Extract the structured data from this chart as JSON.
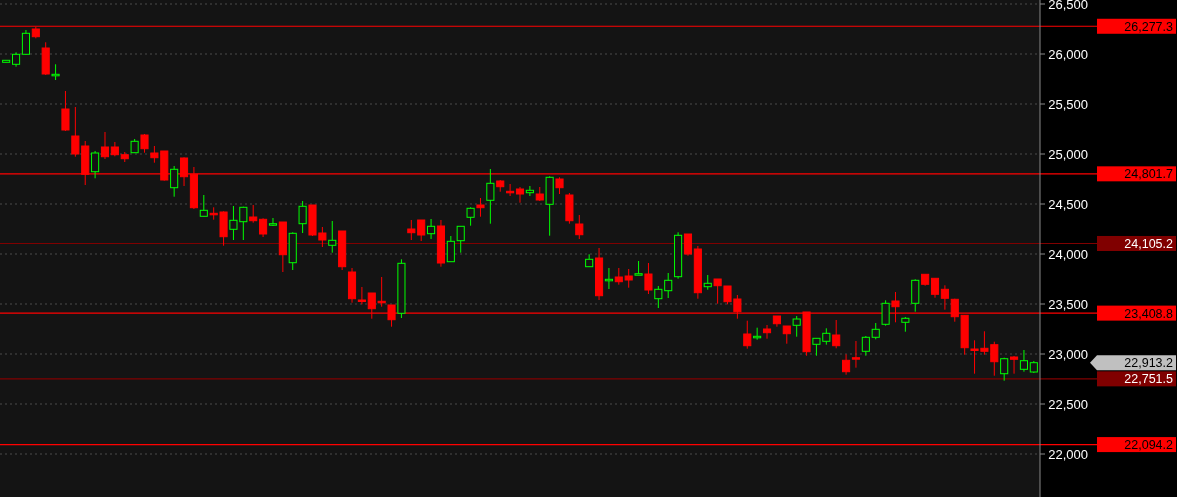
{
  "chart_data": {
    "type": "candlestick",
    "categories": [
      null,
      null,
      null,
      null,
      null,
      null,
      null,
      null,
      null,
      null,
      null,
      null,
      null,
      null,
      null,
      null,
      null,
      null,
      null,
      null,
      null,
      null,
      null,
      null,
      null,
      null,
      null,
      null,
      null,
      null,
      null,
      null,
      null,
      null,
      null,
      null,
      null,
      null,
      null,
      null,
      null,
      null,
      null,
      null,
      null,
      null,
      null,
      null,
      null,
      null,
      null,
      null,
      null,
      null,
      null,
      null,
      null,
      null,
      null,
      null,
      null,
      null,
      null,
      null,
      null,
      null,
      null,
      null,
      null,
      null,
      null,
      null,
      null,
      null,
      null,
      null,
      null,
      null,
      null,
      null,
      null,
      null,
      null,
      null,
      null,
      null,
      null,
      null,
      null,
      null,
      null,
      null,
      null,
      null,
      null,
      null,
      null,
      null,
      null,
      null,
      null,
      null,
      null,
      null,
      null
    ],
    "ohlc": [
      [
        25917,
        25937,
        25917,
        25937
      ],
      [
        25897,
        26017,
        25873,
        25997
      ],
      [
        25997,
        26240,
        25997,
        26207
      ],
      [
        26250,
        26273,
        26157,
        26173
      ],
      [
        26060,
        26117,
        25790,
        25800
      ],
      [
        25793,
        25897,
        25740,
        25797
      ],
      [
        25450,
        25630,
        25230,
        25240
      ],
      [
        25180,
        25470,
        24973,
        25000
      ],
      [
        25080,
        25130,
        24690,
        24797
      ],
      [
        24823,
        25030,
        24757,
        25010
      ],
      [
        25070,
        25220,
        24950,
        24973
      ],
      [
        25070,
        25120,
        24977,
        24993
      ],
      [
        24993,
        25020,
        24920,
        24953
      ],
      [
        25013,
        25150,
        25013,
        25127
      ],
      [
        25190,
        25200,
        25013,
        25053
      ],
      [
        25010,
        25080,
        24913,
        24963
      ],
      [
        25030,
        25030,
        24733,
        24740
      ],
      [
        24663,
        24880,
        24573,
        24847
      ],
      [
        24960,
        24967,
        24680,
        24773
      ],
      [
        24797,
        24870,
        24450,
        24463
      ],
      [
        24377,
        24590,
        24377,
        24437
      ],
      [
        24407,
        24467,
        24343,
        24397
      ],
      [
        24420,
        24427,
        24083,
        24173
      ],
      [
        24247,
        24480,
        24140,
        24337
      ],
      [
        24323,
        24473,
        24140,
        24467
      ],
      [
        24370,
        24490,
        24313,
        24333
      ],
      [
        24347,
        24357,
        24170,
        24200
      ],
      [
        24297,
        24360,
        24280,
        24303
      ],
      [
        24320,
        24320,
        23820,
        23993
      ],
      [
        23913,
        24217,
        23840,
        24207
      ],
      [
        24303,
        24530,
        24210,
        24477
      ],
      [
        24490,
        24490,
        24180,
        24190
      ],
      [
        24210,
        24270,
        24070,
        24140
      ],
      [
        24087,
        24330,
        24013,
        24137
      ],
      [
        24230,
        24230,
        23840,
        23873
      ],
      [
        23820,
        23860,
        23513,
        23553
      ],
      [
        23540,
        23670,
        23497,
        23530
      ],
      [
        23610,
        23610,
        23353,
        23453
      ],
      [
        23527,
        23770,
        23473,
        23517
      ],
      [
        23490,
        23490,
        23273,
        23343
      ],
      [
        23407,
        23947,
        23360,
        23907
      ],
      [
        24250,
        24340,
        24140,
        24213
      ],
      [
        24340,
        24340,
        24130,
        24190
      ],
      [
        24203,
        24350,
        24150,
        24277
      ],
      [
        24280,
        24340,
        23873,
        23910
      ],
      [
        23923,
        24180,
        23923,
        24127
      ],
      [
        24133,
        24277,
        24013,
        24277
      ],
      [
        24367,
        24467,
        24283,
        24457
      ],
      [
        24490,
        24560,
        24373,
        24463
      ],
      [
        24537,
        24850,
        24303,
        24707
      ],
      [
        24730,
        24740,
        24623,
        24673
      ],
      [
        24627,
        24700,
        24580,
        24623
      ],
      [
        24650,
        24670,
        24513,
        24600
      ],
      [
        24613,
        24680,
        24580,
        24637
      ],
      [
        24600,
        24670,
        24530,
        24540
      ],
      [
        24497,
        24777,
        24183,
        24767
      ],
      [
        24750,
        24767,
        24600,
        24663
      ],
      [
        24590,
        24610,
        24303,
        24333
      ],
      [
        24300,
        24390,
        24150,
        24193
      ],
      [
        23873,
        23997,
        23873,
        23947
      ],
      [
        23960,
        24060,
        23540,
        23583
      ],
      [
        23740,
        23860,
        23650,
        23747
      ],
      [
        23770,
        23860,
        23693,
        23723
      ],
      [
        23780,
        23850,
        23663,
        23740
      ],
      [
        23800,
        23930,
        23793,
        23803
      ],
      [
        23800,
        23910,
        23600,
        23640
      ],
      [
        23553,
        23680,
        23460,
        23647
      ],
      [
        23633,
        23810,
        23560,
        23737
      ],
      [
        23773,
        24217,
        23753,
        24187
      ],
      [
        24200,
        24200,
        23983,
        24000
      ],
      [
        24050,
        24080,
        23553,
        23613
      ],
      [
        23673,
        23790,
        23643,
        23707
      ],
      [
        23750,
        23750,
        23503,
        23683
      ],
      [
        23680,
        23680,
        23497,
        23523
      ],
      [
        23550,
        23590,
        23353,
        23423
      ],
      [
        23200,
        23333,
        23053,
        23083
      ],
      [
        23173,
        23263,
        23143,
        23177
      ],
      [
        23250,
        23290,
        23153,
        23213
      ],
      [
        23380,
        23380,
        23273,
        23303
      ],
      [
        23280,
        23280,
        23103,
        23203
      ],
      [
        23287,
        23380,
        23173,
        23350
      ],
      [
        23420,
        23420,
        22983,
        23023
      ],
      [
        23097,
        23157,
        22983,
        23157
      ],
      [
        23127,
        23257,
        23093,
        23207
      ],
      [
        23190,
        23340,
        23057,
        23083
      ],
      [
        22937,
        22997,
        22793,
        22823
      ],
      [
        22963,
        23130,
        22863,
        22960
      ],
      [
        23027,
        23180,
        22983,
        23167
      ],
      [
        23167,
        23310,
        23147,
        23247
      ],
      [
        23297,
        23537,
        23283,
        23507
      ],
      [
        23530,
        23620,
        23317,
        23473
      ],
      [
        23317,
        23370,
        23223,
        23357
      ],
      [
        23507,
        23747,
        23423,
        23737
      ],
      [
        23797,
        23797,
        23683,
        23697
      ],
      [
        23757,
        23757,
        23563,
        23597
      ],
      [
        23647,
        23687,
        23443,
        23557
      ],
      [
        23547,
        23553,
        23323,
        23373
      ],
      [
        23387,
        23387,
        22993,
        23063
      ],
      [
        23050,
        23137,
        22803,
        23047
      ],
      [
        23057,
        23227,
        22993,
        23027
      ],
      [
        23093,
        23123,
        22783,
        22923
      ],
      [
        22803,
        22963,
        22733,
        22953
      ],
      [
        22970,
        22980,
        22803,
        22947
      ],
      [
        22847,
        23040,
        22823,
        22933
      ],
      [
        22820,
        22930,
        22810,
        22913.2
      ]
    ],
    "colors": [
      "#00ff00",
      "#00ff00",
      "#00ff00",
      "#ff0000",
      "#ff0000",
      "#00ff00",
      "#ff0000",
      "#ff0000",
      "#ff0000",
      "#00ff00",
      "#ff0000",
      "#ff0000",
      "#ff0000",
      "#00ff00",
      "#ff0000",
      "#ff0000",
      "#ff0000",
      "#00ff00",
      "#ff0000",
      "#ff0000",
      "#00ff00",
      "#ff0000",
      "#ff0000",
      "#00ff00",
      "#00ff00",
      "#ff0000",
      "#ff0000",
      "#00ff00",
      "#ff0000",
      "#00ff00",
      "#00ff00",
      "#ff0000",
      "#ff0000",
      "#00ff00",
      "#ff0000",
      "#ff0000",
      "#ff0000",
      "#ff0000",
      "#ff0000",
      "#ff0000",
      "#00ff00",
      "#ff0000",
      "#ff0000",
      "#00ff00",
      "#ff0000",
      "#00ff00",
      "#00ff00",
      "#00ff00",
      "#ff0000",
      "#00ff00",
      "#ff0000",
      "#ff0000",
      "#ff0000",
      "#00ff00",
      "#ff0000",
      "#00ff00",
      "#ff0000",
      "#ff0000",
      "#ff0000",
      "#00ff00",
      "#ff0000",
      "#00ff00",
      "#ff0000",
      "#ff0000",
      "#00ff00",
      "#ff0000",
      "#00ff00",
      "#00ff00",
      "#00ff00",
      "#ff0000",
      "#ff0000",
      "#00ff00",
      "#ff0000",
      "#ff0000",
      "#ff0000",
      "#ff0000",
      "#00ff00",
      "#ff0000",
      "#ff0000",
      "#ff0000",
      "#00ff00",
      "#ff0000",
      "#00ff00",
      "#00ff00",
      "#ff0000",
      "#ff0000",
      "#ff0000",
      "#00ff00",
      "#00ff00",
      "#00ff00",
      "#ff0000",
      "#00ff00",
      "#00ff00",
      "#ff0000",
      "#ff0000",
      "#ff0000",
      "#ff0000",
      "#ff0000",
      "#ff0000",
      "#ff0000",
      "#ff0000",
      "#00ff00",
      "#ff0000",
      "#00ff00",
      "#00ff00"
    ],
    "ylim": [
      21570,
      26540
    ],
    "yticks": [
      {
        "value": 22000,
        "label": "22,000"
      },
      {
        "value": 22500,
        "label": "22,500"
      },
      {
        "value": 23000,
        "label": "23,000"
      },
      {
        "value": 23500,
        "label": "23,500"
      },
      {
        "value": 24000,
        "label": "24,000"
      },
      {
        "value": 24500,
        "label": "24,500"
      },
      {
        "value": 25000,
        "label": "25,000"
      },
      {
        "value": 25500,
        "label": "25,500"
      },
      {
        "value": 26000,
        "label": "26,000"
      },
      {
        "value": 26500,
        "label": "26,500"
      }
    ],
    "grid": "y",
    "ref_lines": [
      {
        "axis": "y",
        "value": 26277.3,
        "label": "26,277.3",
        "color": "#ff0000"
      },
      {
        "axis": "y",
        "value": 24801.7,
        "label": "24,801.7",
        "color": "#ff0000"
      },
      {
        "axis": "y",
        "value": 24105.2,
        "label": "24,105.2",
        "color": "#800000"
      },
      {
        "axis": "y",
        "value": 23408.8,
        "label": "23,408.8",
        "color": "#ff0000"
      },
      {
        "axis": "y",
        "value": 22751.5,
        "label": "22,751.5",
        "color": "#800000"
      },
      {
        "axis": "y",
        "value": 22094.2,
        "label": "22,094.2",
        "color": "#ff0000"
      }
    ],
    "annotations": [
      "22,913.2"
    ]
  }
}
